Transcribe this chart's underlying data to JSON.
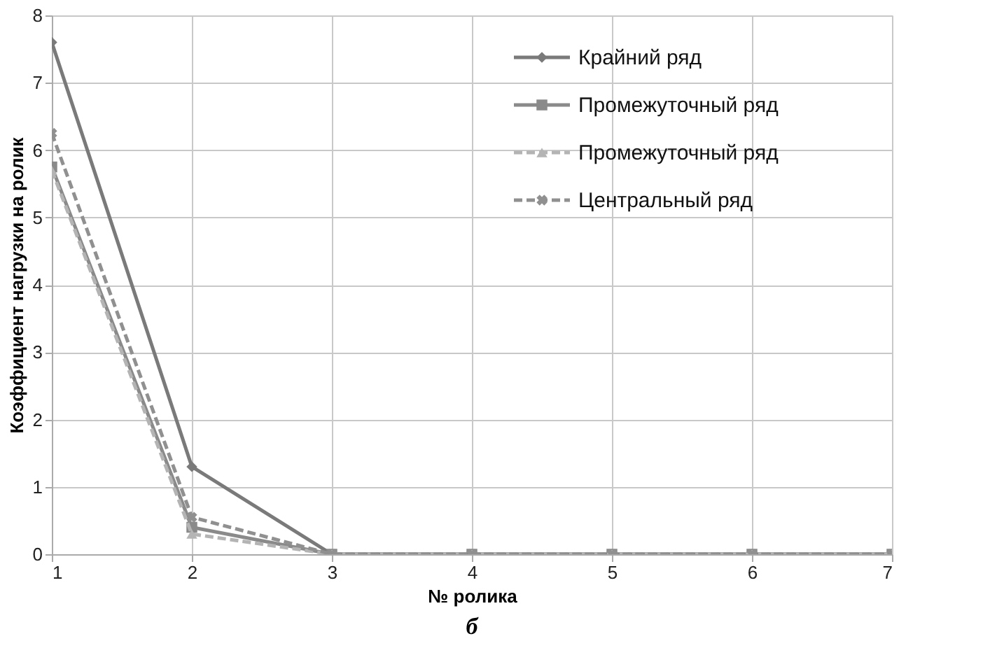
{
  "chart_data": {
    "type": "line",
    "xlabel": "№ ролика",
    "ylabel": "Коэффициент нагрузки на ролик",
    "x": [
      1,
      2,
      3,
      4,
      5,
      6,
      7
    ],
    "series": [
      {
        "name": "Крайний ряд",
        "color": "#7a7a7a",
        "marker": "diamond",
        "line_style": "solid",
        "values": [
          7.6,
          1.3,
          0,
          0,
          0,
          0,
          0
        ]
      },
      {
        "name": "Промежуточный ряд",
        "color": "#8a8a8a",
        "marker": "square",
        "line_style": "solid",
        "values": [
          5.75,
          0.4,
          0,
          0,
          0,
          0,
          0
        ]
      },
      {
        "name": "Промежуточный ряд",
        "color": "#b4b4b4",
        "marker": "triangle",
        "line_style": "dashed",
        "values": [
          5.7,
          0.3,
          0,
          0,
          0,
          0,
          0
        ]
      },
      {
        "name": "Центральный ряд",
        "color": "#909090",
        "marker": "cross",
        "line_style": "dashed",
        "values": [
          6.25,
          0.55,
          0,
          0,
          0,
          0,
          0
        ]
      }
    ],
    "xlim": [
      1,
      7
    ],
    "xticks": [
      1,
      2,
      3,
      4,
      5,
      6,
      7
    ],
    "ylim": [
      0,
      8
    ],
    "yticks": [
      0,
      1,
      2,
      3,
      4,
      5,
      6,
      7,
      8
    ],
    "grid": true,
    "legend": "top right",
    "annotations": [
      "б"
    ]
  }
}
